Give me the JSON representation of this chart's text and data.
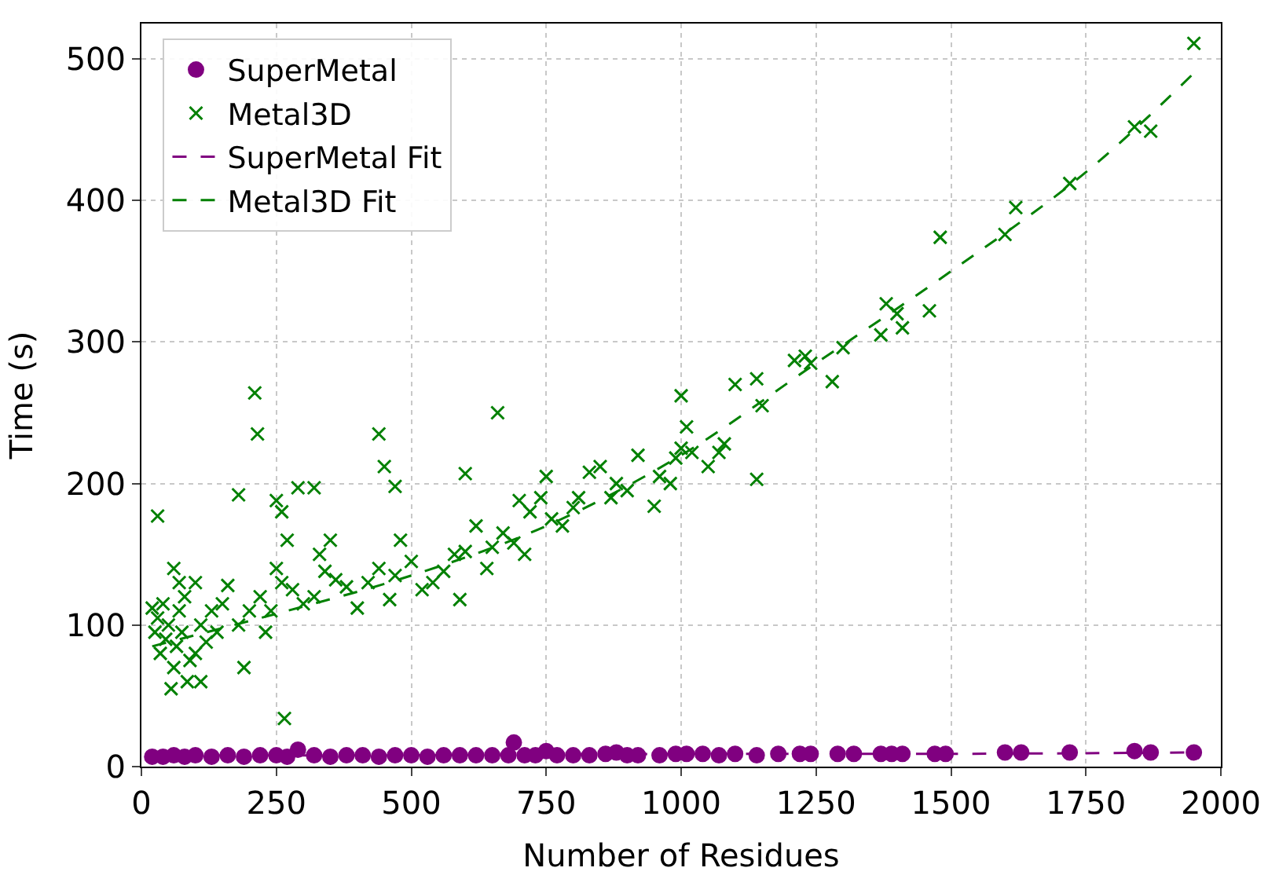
{
  "chart_data": {
    "type": "scatter",
    "xlabel": "Number of Residues",
    "ylabel": "Time (s)",
    "xlim": [
      0,
      2000
    ],
    "ylim": [
      0,
      525
    ],
    "xticks": [
      0,
      250,
      500,
      750,
      1000,
      1250,
      1500,
      1750,
      2000
    ],
    "yticks": [
      0,
      100,
      200,
      300,
      400,
      500
    ],
    "grid": true,
    "legend": "top left",
    "series": [
      {
        "name": "SuperMetal",
        "marker": "circle",
        "color": "#800080",
        "x": [
          20,
          40,
          60,
          80,
          100,
          130,
          160,
          190,
          220,
          250,
          270,
          290,
          320,
          350,
          380,
          410,
          440,
          470,
          500,
          530,
          560,
          590,
          620,
          650,
          680,
          690,
          710,
          730,
          750,
          770,
          800,
          830,
          860,
          880,
          900,
          920,
          960,
          990,
          1010,
          1040,
          1070,
          1100,
          1140,
          1180,
          1220,
          1240,
          1290,
          1320,
          1370,
          1390,
          1410,
          1470,
          1490,
          1600,
          1630,
          1720,
          1840,
          1870,
          1950
        ],
        "values": [
          7,
          7,
          8,
          7,
          8,
          7,
          8,
          7,
          8,
          8,
          7,
          12,
          8,
          7,
          8,
          8,
          7,
          8,
          8,
          7,
          8,
          8,
          8,
          8,
          8,
          17,
          8,
          8,
          11,
          8,
          8,
          8,
          9,
          10,
          8,
          8,
          8,
          9,
          9,
          9,
          8,
          9,
          8,
          9,
          9,
          9,
          9,
          9,
          9,
          9,
          9,
          9,
          9,
          10,
          10,
          10,
          11,
          10,
          10
        ]
      },
      {
        "name": "Metal3D",
        "marker": "cross",
        "color": "#008000",
        "x": [
          30,
          210,
          215,
          265,
          180,
          290,
          320,
          440,
          450,
          470,
          660,
          600,
          950,
          1000,
          1140,
          1480,
          1460,
          1950,
          1840,
          1870,
          1720,
          1620,
          1600,
          1380,
          1400,
          1410,
          1370,
          1280,
          1300,
          1240,
          1230,
          1210,
          1140,
          1100,
          1150,
          1080,
          1070,
          1010,
          1020,
          1050,
          1000,
          990,
          980,
          960,
          920,
          900,
          880,
          870,
          850,
          830,
          810,
          800,
          780,
          760,
          750,
          740,
          720,
          700,
          710,
          690,
          670,
          650,
          640,
          620,
          600,
          590,
          580,
          560,
          540,
          520,
          500,
          480,
          470,
          460,
          440,
          420,
          400,
          380,
          360,
          340,
          330,
          320,
          300,
          280,
          270,
          260,
          250,
          240,
          230,
          220,
          200,
          190,
          180,
          160,
          150,
          140,
          130,
          120,
          110,
          100,
          90,
          85,
          80,
          75,
          70,
          65,
          60,
          55,
          50,
          45,
          40,
          35,
          30,
          25,
          20,
          100,
          60,
          70,
          110,
          260,
          250,
          350
        ],
        "values": [
          177,
          264,
          235,
          34,
          192,
          197,
          197,
          235,
          212,
          198,
          250,
          207,
          184,
          262,
          203,
          374,
          322,
          511,
          452,
          449,
          412,
          395,
          376,
          327,
          320,
          310,
          305,
          272,
          296,
          285,
          290,
          287,
          274,
          270,
          255,
          228,
          222,
          240,
          222,
          212,
          225,
          218,
          200,
          205,
          220,
          195,
          200,
          190,
          212,
          208,
          190,
          183,
          170,
          175,
          205,
          190,
          180,
          188,
          150,
          158,
          165,
          155,
          140,
          170,
          152,
          118,
          150,
          138,
          130,
          125,
          145,
          160,
          135,
          118,
          140,
          130,
          112,
          127,
          132,
          138,
          150,
          120,
          115,
          125,
          160,
          130,
          140,
          110,
          95,
          120,
          110,
          70,
          100,
          128,
          115,
          95,
          110,
          88,
          100,
          80,
          75,
          60,
          120,
          95,
          110,
          85,
          70,
          55,
          100,
          90,
          115,
          80,
          105,
          95,
          112,
          130,
          140,
          130,
          60,
          180,
          188,
          160
        ]
      },
      {
        "name": "SuperMetal Fit",
        "type": "line",
        "line_style": "dashed",
        "color": "#800080",
        "x": [
          20,
          500,
          1000,
          1500,
          1950
        ],
        "values": [
          8,
          8,
          9,
          9,
          10
        ]
      },
      {
        "name": "Metal3D Fit",
        "type": "line",
        "line_style": "dashed",
        "color": "#008000",
        "x": [
          20,
          250,
          500,
          750,
          1000,
          1250,
          1500,
          1750,
          1950
        ],
        "values": [
          85,
          108,
          135,
          170,
          220,
          285,
          350,
          420,
          490
        ]
      }
    ]
  }
}
